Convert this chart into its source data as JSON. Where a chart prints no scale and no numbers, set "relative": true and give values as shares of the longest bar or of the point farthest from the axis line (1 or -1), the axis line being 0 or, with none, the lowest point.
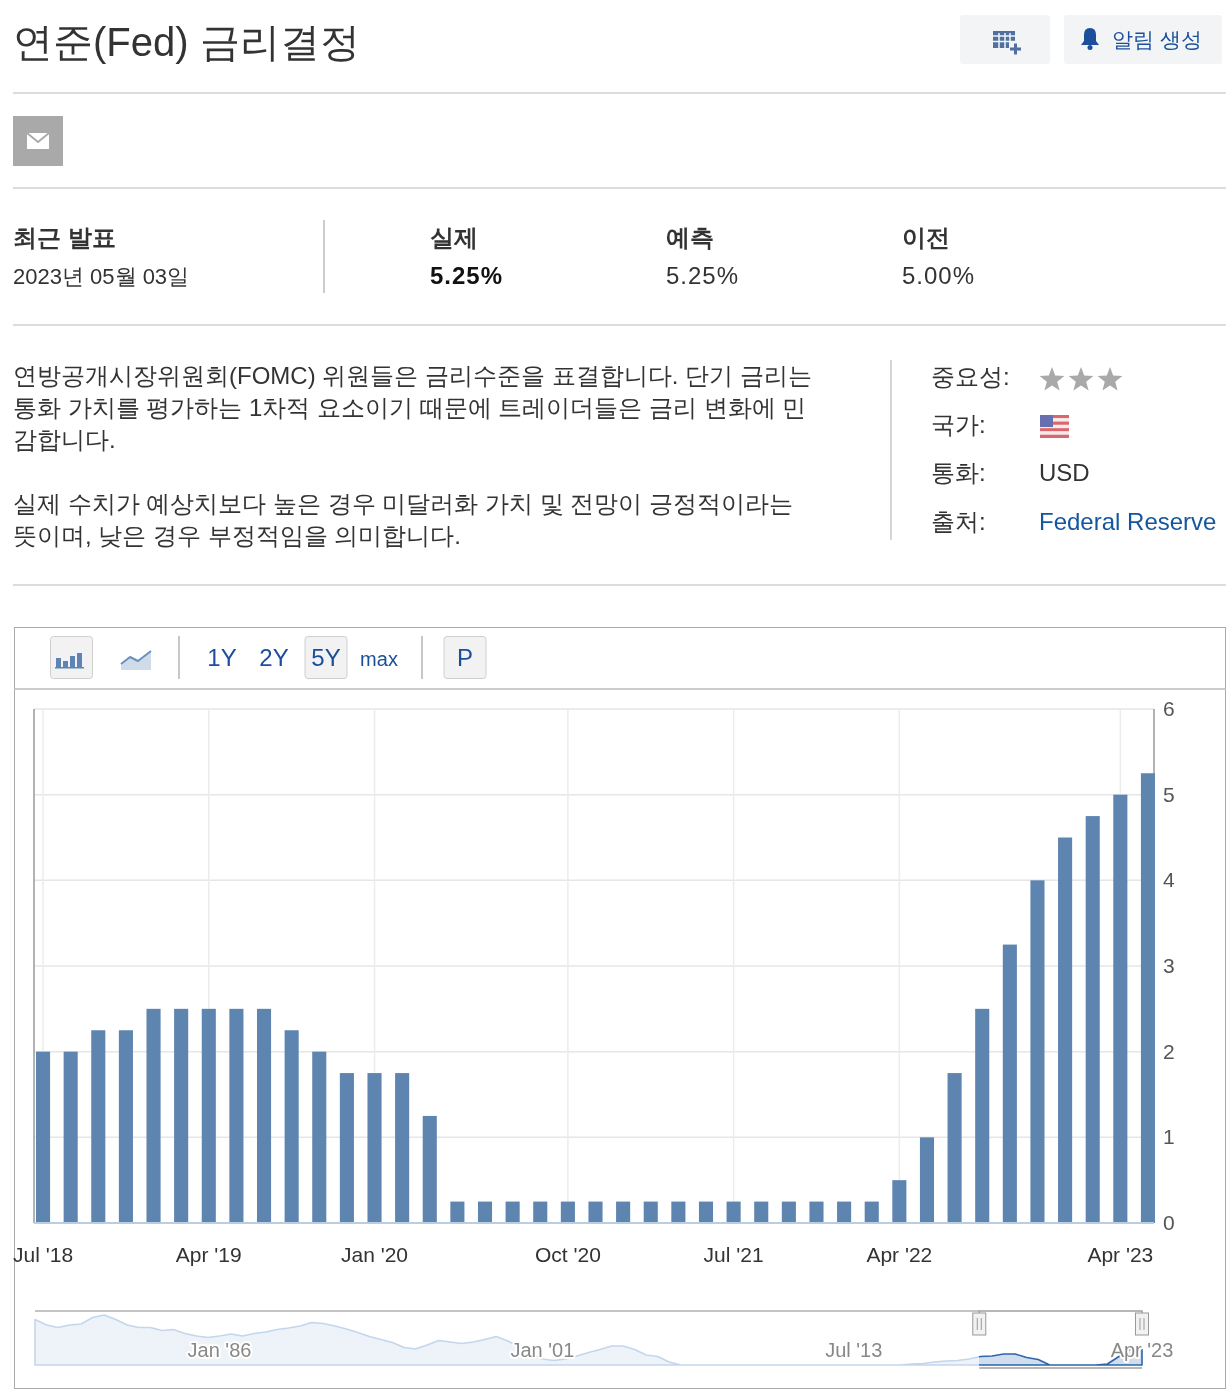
{
  "chart_data": [
    {
      "type": "other",
      "title": "연준(Fed) 금리결정",
      "annotations": [
        "알림 생성",
        "최근 발표",
        "2023년 05월 03일",
        "실제",
        "5.25%",
        "예측",
        "5.25%",
        "이전",
        "5.00%",
        "연방공개시장위원회(FOMC) 위원들은 금리수준을 표결합니다. 단기 금리는 통화 가치를 평가하는 1차적 요소이기 때문에 트레이더들은 금리 변화에 민감합니다.",
        "실제 수치가 예상치보다 높은 경우 미달러화 가치 및 전망이 긍정적이라는 뜻이며, 낮은 경우 부정적임을 의미합니다.",
        "중요성:",
        "국가:",
        "통화:",
        "USD",
        "출처:",
        "Federal Reserve"
      ]
    },
    {
      "type": "bar",
      "categories": [
        "Jul '18",
        null,
        null,
        null,
        null,
        null,
        "Apr '19",
        null,
        null,
        null,
        null,
        null,
        "Jan '20",
        null,
        null,
        null,
        null,
        null,
        null,
        "Oct '20",
        null,
        null,
        null,
        null,
        null,
        "Jul '21",
        null,
        null,
        null,
        null,
        null,
        "Apr '22",
        null,
        null,
        null,
        null,
        null,
        null,
        null,
        "Apr '23",
        null
      ],
      "values": [
        2,
        2,
        2.25,
        2.25,
        2.5,
        2.5,
        2.5,
        2.5,
        2.5,
        2.25,
        2,
        1.75,
        1.75,
        1.75,
        1.25,
        0.25,
        0.25,
        0.25,
        0.25,
        0.25,
        0.25,
        0.25,
        0.25,
        0.25,
        0.25,
        0.25,
        0.25,
        0.25,
        0.25,
        0.25,
        0.25,
        0.5,
        1,
        1.75,
        2.5,
        3.25,
        4,
        4.5,
        4.75,
        5,
        5.25
      ],
      "color": "#5e84b0",
      "ylim": [
        0,
        6
      ],
      "yticks": [
        0,
        1,
        2,
        3,
        4,
        5,
        6
      ],
      "grid": true,
      "annotations": [
        "1Y",
        "2Y",
        "5Y",
        "max",
        "P"
      ]
    },
    {
      "type": "area",
      "relative": true,
      "color": "#c3d6ec",
      "categories": [
        null,
        null,
        null,
        null,
        null,
        null,
        null,
        null,
        null,
        null,
        null,
        null,
        null,
        null,
        null,
        null,
        "Jan '86",
        null,
        null,
        null,
        null,
        null,
        null,
        null,
        null,
        null,
        null,
        null,
        null,
        null,
        null,
        null,
        null,
        null,
        null,
        null,
        null,
        null,
        null,
        null,
        null,
        null,
        null,
        null,
        "Jan '01",
        null,
        null,
        null,
        null,
        null,
        null,
        null,
        null,
        null,
        null,
        null,
        null,
        null,
        null,
        null,
        null,
        null,
        null,
        null,
        null,
        null,
        null,
        null,
        null,
        null,
        null,
        "Jul '13",
        null,
        null,
        null,
        null,
        null,
        null,
        null,
        null,
        null,
        null,
        null,
        null,
        null,
        null,
        null,
        null,
        null,
        null,
        null,
        null,
        null,
        null,
        null,
        null,
        "Apr '23"
      ],
      "values": [
        0.91,
        0.8,
        0.75,
        0.8,
        0.82,
        0.95,
        1,
        0.91,
        0.8,
        0.75,
        0.75,
        0.69,
        0.71,
        0.63,
        0.58,
        0.55,
        0.58,
        0.62,
        0.58,
        0.63,
        0.66,
        0.71,
        0.74,
        0.78,
        0.85,
        0.83,
        0.78,
        0.72,
        0.65,
        0.57,
        0.51,
        0.45,
        0.35,
        0.32,
        0.4,
        0.49,
        0.46,
        0.43,
        0.46,
        0.51,
        0.57,
        0.48,
        0.37,
        0.23,
        0.12,
        0.09,
        0.12,
        0.18,
        0.25,
        0.31,
        0.38,
        0.38,
        0.31,
        0.2,
        0.17,
        0.06,
        0,
        0,
        0,
        0,
        0,
        0,
        0,
        0,
        0,
        0,
        0,
        0,
        0,
        0,
        0,
        0,
        0,
        0,
        0,
        0,
        0.02,
        0.03,
        0.06,
        0.08,
        0.09,
        0.12,
        0.17,
        0.18,
        0.22,
        0.22,
        0.15,
        0.11,
        0,
        0,
        0,
        0,
        0,
        0.02,
        0.17,
        0.32,
        0.38
      ]
    }
  ]
}
